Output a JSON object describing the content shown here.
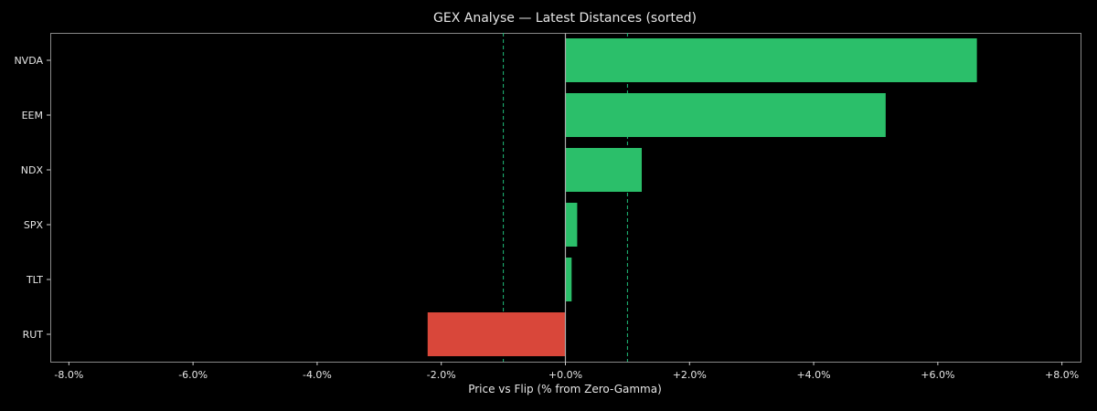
{
  "chart_data": {
    "type": "bar",
    "orientation": "horizontal",
    "title": "GEX Analyse — Latest Distances (sorted)",
    "xlabel": "Price vs Flip (% from Zero-Gamma)",
    "ylabel": "",
    "categories": [
      "NVDA",
      "EEM",
      "NDX",
      "SPX",
      "TLT",
      "RUT"
    ],
    "values": [
      6.63,
      5.16,
      1.23,
      0.19,
      0.1,
      -2.22
    ],
    "xlim": [
      -8.3,
      8.3
    ],
    "xticks": [
      -8,
      -6,
      -4,
      -2,
      0,
      2,
      4,
      6,
      8
    ],
    "xtick_labels": [
      "-8.0%",
      "-6.0%",
      "-4.0%",
      "-2.0%",
      "+0.0%",
      "+2.0%",
      "+4.0%",
      "+6.0%",
      "+8.0%"
    ],
    "reference_lines": [
      -1,
      1
    ],
    "grid": false,
    "colors": {
      "positive": "#2bbf6a",
      "negative": "#d9473a",
      "reference": "#1fbf7a",
      "zero": "#aaaaaa",
      "axis": "#888888",
      "background": "#000000"
    }
  }
}
